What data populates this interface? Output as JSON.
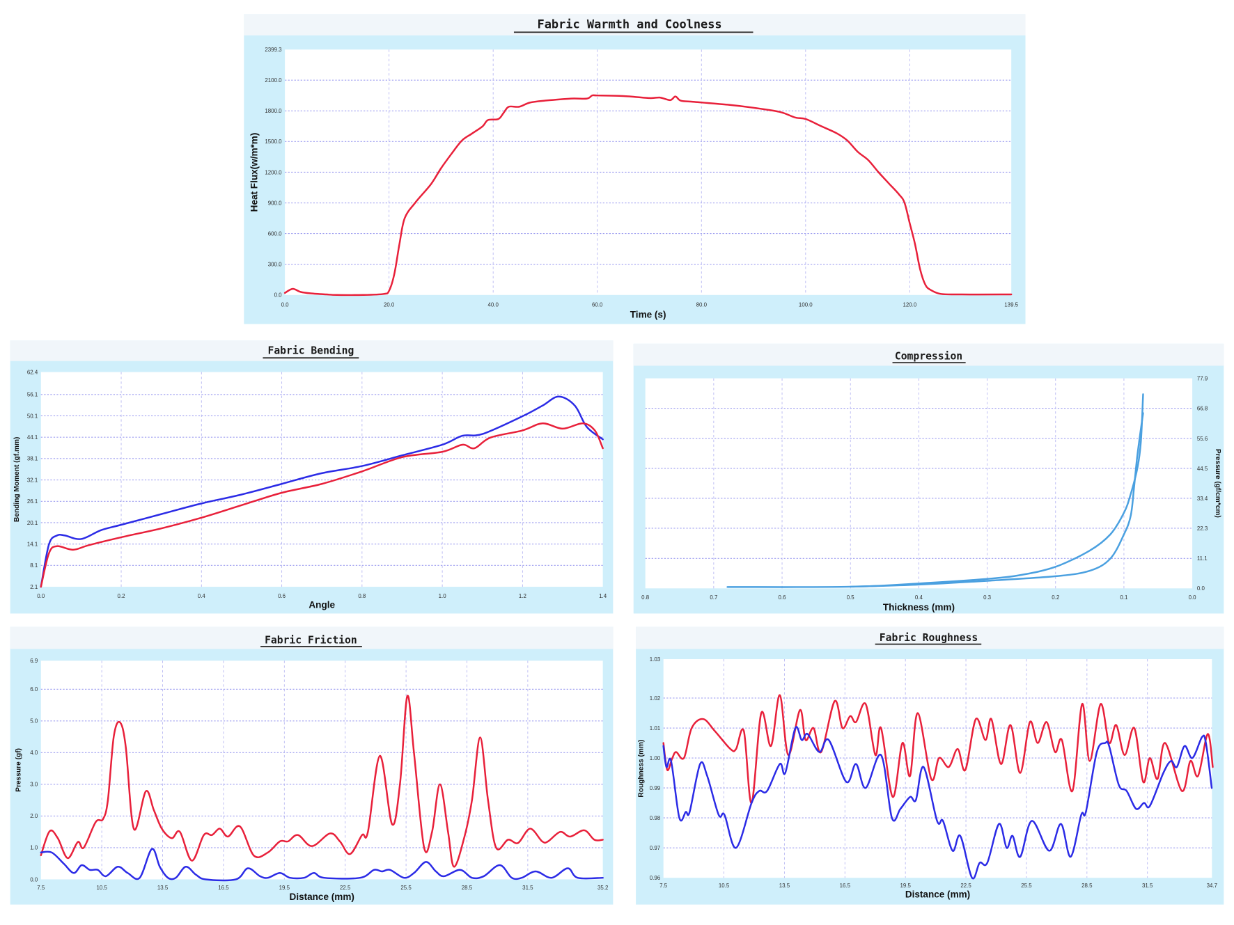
{
  "chart_data": [
    {
      "id": "warmth",
      "type": "line",
      "title": "Fabric Warmth and Coolness",
      "xlabel": "Time (s)",
      "ylabel": "Heat Flux(w/m*m)",
      "xlim": [
        0,
        139.5
      ],
      "ylim": [
        0,
        2399.3
      ],
      "xticks": [
        0,
        20,
        40,
        60,
        80,
        100,
        120,
        139.5
      ],
      "xtick_labels": [
        "0.0",
        "20.0",
        "40.0",
        "60.0",
        "80.0",
        "100.0",
        "120.0",
        "139.5"
      ],
      "yticks": [
        0,
        300,
        600,
        900,
        1200,
        1500,
        1800,
        2100,
        2399.3
      ],
      "ytick_labels": [
        "0.0",
        "300.0",
        "600.0",
        "900.0",
        "1200.0",
        "1500.0",
        "1800.0",
        "2100.0",
        "2399.3"
      ],
      "ytick_side": "left",
      "grid": true,
      "series": [
        {
          "color": "#e8203a",
          "x": [
            0,
            1.5,
            3,
            5,
            8,
            10,
            15,
            19,
            20,
            21,
            22,
            23,
            25,
            28,
            30,
            32,
            34,
            36,
            38,
            39,
            41,
            42,
            43,
            45,
            47,
            50,
            55,
            58,
            59,
            60,
            65,
            70,
            72,
            74,
            75,
            76,
            78,
            85,
            90,
            95,
            98,
            100,
            103,
            106,
            108,
            110,
            112,
            114,
            116,
            118,
            119,
            120,
            121,
            122,
            123,
            124,
            126,
            130,
            139.5
          ],
          "y": [
            20,
            60,
            30,
            15,
            5,
            0,
            0,
            10,
            40,
            200,
            500,
            750,
            900,
            1080,
            1240,
            1380,
            1510,
            1580,
            1650,
            1710,
            1720,
            1780,
            1840,
            1840,
            1880,
            1900,
            1920,
            1920,
            1950,
            1950,
            1945,
            1925,
            1930,
            1905,
            1940,
            1900,
            1890,
            1860,
            1830,
            1790,
            1735,
            1720,
            1650,
            1580,
            1510,
            1400,
            1320,
            1200,
            1090,
            980,
            900,
            700,
            500,
            250,
            100,
            50,
            10,
            5,
            5
          ]
        }
      ]
    },
    {
      "id": "bending",
      "type": "line",
      "title": "Fabric Bending",
      "xlabel": "Angle",
      "ylabel": "Bending Moment (gf.mm)",
      "xlim": [
        0,
        1.4
      ],
      "ylim": [
        2.1,
        62.4
      ],
      "xticks": [
        0,
        0.2,
        0.4,
        0.6,
        0.8,
        1.0,
        1.2,
        1.4
      ],
      "xtick_labels": [
        "0.0",
        "0.2",
        "0.4",
        "0.6",
        "0.8",
        "1.0",
        "1.2",
        "1.4"
      ],
      "yticks": [
        2.1,
        8.1,
        14.1,
        20.1,
        26.1,
        32.1,
        38.1,
        44.1,
        50.1,
        56.1,
        62.4
      ],
      "ytick_labels": [
        "2.1",
        "8.1",
        "14.1",
        "20.1",
        "26.1",
        "32.1",
        "38.1",
        "44.1",
        "50.1",
        "56.1",
        "62.4"
      ],
      "ytick_side": "left",
      "grid": true,
      "series": [
        {
          "color": "#2b2be6",
          "x": [
            0,
            0.02,
            0.04,
            0.06,
            0.1,
            0.15,
            0.2,
            0.3,
            0.4,
            0.5,
            0.6,
            0.7,
            0.8,
            0.9,
            1.0,
            1.05,
            1.1,
            1.2,
            1.25,
            1.29,
            1.33,
            1.36,
            1.4
          ],
          "y": [
            2.1,
            14,
            16.5,
            16.5,
            15.5,
            18,
            19.5,
            22.5,
            25.5,
            28,
            31,
            34,
            36,
            39,
            42,
            44.5,
            45,
            50,
            53,
            55.5,
            53,
            47,
            43.5
          ]
        },
        {
          "color": "#e8203a",
          "x": [
            0,
            0.02,
            0.04,
            0.08,
            0.12,
            0.2,
            0.3,
            0.4,
            0.5,
            0.6,
            0.7,
            0.8,
            0.9,
            1.0,
            1.05,
            1.08,
            1.12,
            1.2,
            1.25,
            1.3,
            1.35,
            1.38,
            1.4
          ],
          "y": [
            2.1,
            11.5,
            13.5,
            12.5,
            13.8,
            16,
            18.5,
            21.5,
            25,
            28.5,
            31,
            34.5,
            38.5,
            40,
            42,
            41,
            44,
            46,
            48,
            46.5,
            48,
            46,
            41
          ]
        }
      ]
    },
    {
      "id": "compression",
      "type": "line",
      "title": "Compression",
      "xlabel": "Thickness (mm)",
      "ylabel": "Pressure (gf/cm*cm)",
      "xlim": [
        0.8,
        0.0
      ],
      "ylim": [
        0,
        77.9
      ],
      "xticks": [
        0.8,
        0.7,
        0.6,
        0.5,
        0.4,
        0.3,
        0.2,
        0.1,
        0.0
      ],
      "xtick_labels": [
        "0.8",
        "0.7",
        "0.6",
        "0.5",
        "0.4",
        "0.3",
        "0.2",
        "0.1",
        "0.0"
      ],
      "yticks": [
        0,
        11.1,
        22.3,
        33.4,
        44.5,
        55.6,
        66.8,
        77.9
      ],
      "ytick_labels": [
        "0.0",
        "11.1",
        "22.3",
        "33.4",
        "44.5",
        "55.6",
        "66.8",
        "77.9"
      ],
      "ytick_side": "right",
      "grid": true,
      "series": [
        {
          "color": "#4aa0e0",
          "x": [
            0.68,
            0.5,
            0.4,
            0.3,
            0.25,
            0.2,
            0.15,
            0.12,
            0.1,
            0.09,
            0.08,
            0.075,
            0.072
          ],
          "y": [
            0.5,
            0.6,
            1.8,
            3.5,
            5,
            8,
            14,
            20,
            28,
            35,
            45,
            55,
            72
          ]
        },
        {
          "color": "#4aa0e0",
          "x": [
            0.072,
            0.08,
            0.085,
            0.09,
            0.1,
            0.12,
            0.15,
            0.2,
            0.3,
            0.4,
            0.5
          ],
          "y": [
            65,
            50,
            38,
            27,
            20,
            11,
            6.5,
            4.5,
            2.8,
            1.4,
            0.6
          ]
        }
      ]
    },
    {
      "id": "friction",
      "type": "line",
      "title": "Fabric Friction",
      "xlabel": "Distance (mm)",
      "ylabel": "Pressure (gf)",
      "xlim": [
        7.5,
        35.2
      ],
      "ylim": [
        0,
        6.9
      ],
      "xticks": [
        7.5,
        10.5,
        13.5,
        16.5,
        19.5,
        22.5,
        25.5,
        28.5,
        31.5,
        35.2
      ],
      "xtick_labels": [
        "7.5",
        "10.5",
        "13.5",
        "16.5",
        "19.5",
        "22.5",
        "25.5",
        "28.5",
        "31.5",
        "35.2"
      ],
      "yticks": [
        0,
        1,
        2,
        3,
        4,
        5,
        6,
        6.9
      ],
      "ytick_labels": [
        "0.0",
        "1.0",
        "2.0",
        "3.0",
        "4.0",
        "5.0",
        "6.0",
        "6.9"
      ],
      "ytick_side": "left",
      "grid": true,
      "series": [
        {
          "color": "#e8203a",
          "x": [
            7.5,
            7.93,
            8.33,
            8.82,
            9.32,
            9.61,
            10.2,
            10.56,
            10.8,
            11.09,
            11.39,
            11.68,
            12.08,
            12.67,
            13.06,
            13.46,
            13.95,
            14.35,
            14.94,
            15.53,
            15.93,
            16.32,
            16.72,
            17.31,
            18.0,
            18.69,
            19.28,
            19.68,
            20.17,
            20.86,
            21.75,
            22.24,
            22.74,
            23.33,
            23.62,
            24.21,
            24.81,
            25.2,
            25.56,
            25.89,
            26.39,
            26.78,
            27.17,
            27.57,
            27.86,
            28.36,
            28.75,
            29.15,
            29.54,
            29.94,
            30.53,
            31.02,
            31.61,
            32.21,
            32.5,
            33.1,
            33.59,
            34.28,
            34.78,
            35.2
          ],
          "y": [
            0.76,
            1.52,
            1.3,
            0.67,
            1.18,
            1.0,
            1.81,
            1.9,
            2.5,
            4.5,
            4.96,
            4.2,
            1.59,
            2.78,
            2.2,
            1.6,
            1.3,
            1.5,
            0.59,
            1.4,
            1.4,
            1.6,
            1.35,
            1.67,
            0.75,
            0.85,
            1.2,
            1.2,
            1.4,
            1.05,
            1.45,
            1.2,
            0.8,
            1.4,
            1.5,
            3.9,
            1.74,
            3.0,
            5.78,
            4.0,
            1.0,
            1.5,
            3.0,
            1.5,
            0.4,
            1.3,
            2.5,
            4.48,
            2.5,
            1.0,
            1.25,
            1.15,
            1.6,
            1.2,
            1.2,
            1.5,
            1.35,
            1.55,
            1.25,
            1.25
          ]
        },
        {
          "color": "#2b2be6",
          "x": [
            7.5,
            8.03,
            8.62,
            9.12,
            9.51,
            9.91,
            10.3,
            10.7,
            11.29,
            11.78,
            12.37,
            12.97,
            13.36,
            13.76,
            14.15,
            14.64,
            15.14,
            15.63,
            17.11,
            17.7,
            18.3,
            18.69,
            19.28,
            19.78,
            20.47,
            20.96,
            21.46,
            23.23,
            23.92,
            24.31,
            24.71,
            25.4,
            25.89,
            26.48,
            26.97,
            27.37,
            28.16,
            28.75,
            29.33,
            30.12,
            30.71,
            31.2,
            31.89,
            32.68,
            33.47,
            33.96,
            35.2
          ],
          "y": [
            0.85,
            0.85,
            0.5,
            0.2,
            0.45,
            0.3,
            0.3,
            0.1,
            0.4,
            0.2,
            0.05,
            0.96,
            0.4,
            0.05,
            0.05,
            0.4,
            0.15,
            0.0,
            0.0,
            0.35,
            0.1,
            0.05,
            0.2,
            0.05,
            0.05,
            0.2,
            0.05,
            0.05,
            0.3,
            0.25,
            0.3,
            0.05,
            0.2,
            0.55,
            0.25,
            0.1,
            0.3,
            0.05,
            0.1,
            0.45,
            0.05,
            0.05,
            0.25,
            0.05,
            0.35,
            0.05,
            0.05
          ]
        }
      ]
    },
    {
      "id": "roughness",
      "type": "line",
      "title": "Fabric Roughness",
      "xlabel": "Distance (mm)",
      "ylabel": "Roughness (mm)",
      "xlim": [
        7.5,
        34.7
      ],
      "ylim": [
        0.96,
        1.033
      ],
      "xticks": [
        7.5,
        10.5,
        13.5,
        16.5,
        19.5,
        22.5,
        25.5,
        28.5,
        31.5,
        34.7
      ],
      "xtick_labels": [
        "7.5",
        "10.5",
        "13.5",
        "16.5",
        "19.5",
        "22.5",
        "25.5",
        "28.5",
        "31.5",
        "34.7"
      ],
      "yticks": [
        0.96,
        0.97,
        0.98,
        0.99,
        1.0,
        1.01,
        1.02,
        1.033
      ],
      "ytick_labels": [
        "0.96",
        "0.97",
        "0.98",
        "0.99",
        "1.00",
        "1.01",
        "1.02",
        "1.03"
      ],
      "ytick_side": "left",
      "grid": true,
      "series": [
        {
          "color": "#e8203a",
          "x": [
            7.5,
            7.69,
            7.94,
            8.13,
            8.52,
            8.9,
            9.47,
            10.05,
            10.82,
            11.1,
            11.49,
            11.87,
            12.35,
            12.83,
            13.27,
            13.69,
            14.27,
            14.55,
            14.94,
            15.32,
            15.99,
            16.38,
            16.76,
            17.05,
            17.53,
            18.01,
            18.29,
            18.87,
            19.35,
            19.73,
            20.11,
            20.78,
            21.17,
            21.65,
            22.09,
            22.47,
            22.99,
            23.47,
            23.76,
            24.24,
            24.71,
            25.19,
            25.67,
            26.06,
            26.5,
            26.92,
            27.26,
            27.78,
            28.26,
            28.64,
            29.18,
            29.6,
            29.95,
            30.37,
            30.85,
            31.29,
            31.62,
            32.0,
            32.38,
            33.21,
            33.63,
            34.01,
            34.49,
            34.74
          ],
          "y": [
            1.005,
            0.996,
            1.0,
            1.002,
            1.0,
            1.01,
            1.013,
            1.009,
            1.003,
            1.003,
            1.009,
            0.985,
            1.015,
            1.004,
            1.021,
            1.001,
            1.016,
            1.006,
            1.01,
            1.002,
            1.019,
            1.01,
            1.014,
            1.012,
            1.018,
            1.001,
            1.01,
            0.987,
            1.005,
            0.994,
            1.015,
            0.993,
            1.0,
            0.997,
            1.003,
            0.996,
            1.013,
            1.006,
            1.013,
            0.998,
            1.011,
            0.995,
            1.012,
            1.005,
            1.012,
            1.002,
            1.006,
            0.989,
            1.018,
            0.999,
            1.018,
            1.005,
            1.011,
            1.001,
            1.01,
            0.992,
            1.0,
            0.993,
            1.005,
            0.989,
            0.999,
            0.994,
            1.008,
            0.997
          ]
        },
        {
          "color": "#2b2be6",
          "x": [
            7.5,
            7.65,
            7.88,
            8.29,
            8.61,
            8.8,
            9.32,
            9.67,
            10.24,
            10.53,
            11.1,
            11.87,
            12.25,
            12.64,
            13.27,
            13.54,
            14.04,
            14.36,
            14.65,
            15.23,
            15.7,
            16.57,
            17.05,
            17.53,
            18.29,
            18.83,
            19.25,
            19.73,
            20.02,
            20.4,
            21.07,
            21.36,
            21.84,
            22.22,
            22.8,
            23.18,
            23.56,
            24.14,
            24.52,
            24.81,
            25.19,
            25.77,
            26.63,
            27.21,
            27.69,
            28.22,
            28.45,
            28.99,
            29.41,
            29.6,
            30.08,
            30.47,
            30.94,
            31.33,
            31.62,
            32.29,
            32.67,
            32.96,
            33.34,
            33.73,
            34.21,
            34.4,
            34.69
          ],
          "y": [
            1.004,
            0.997,
            0.999,
            0.98,
            0.982,
            0.982,
            0.998,
            0.994,
            0.981,
            0.981,
            0.97,
            0.985,
            0.989,
            0.989,
            0.998,
            0.995,
            1.01,
            1.006,
            1.008,
            1.002,
            1.006,
            0.992,
            0.998,
            0.99,
            1.001,
            0.98,
            0.983,
            0.987,
            0.986,
            0.997,
            0.979,
            0.979,
            0.969,
            0.974,
            0.96,
            0.965,
            0.965,
            0.978,
            0.97,
            0.974,
            0.967,
            0.979,
            0.969,
            0.978,
            0.967,
            0.981,
            0.982,
            1.002,
            1.005,
            1.004,
            0.991,
            0.989,
            0.983,
            0.985,
            0.984,
            0.995,
            0.999,
            0.997,
            1.004,
            1.0,
            1.007,
            1.005,
            0.99
          ]
        }
      ]
    }
  ]
}
